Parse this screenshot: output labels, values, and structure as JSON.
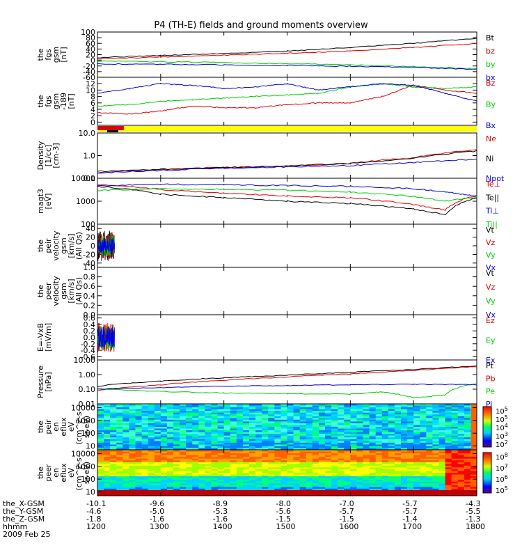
{
  "title": "P4 (TH-E) fields and ground moments overview",
  "colors": {
    "black": "#000000",
    "red": "#dd0000",
    "green": "#00cc00",
    "blue": "#0000dd",
    "yellow": "#ffff00"
  },
  "x_axis": {
    "ticks": [
      1200,
      1300,
      1400,
      1500,
      1600,
      1700,
      1800
    ],
    "rows": [
      {
        "label": "the_X-GSM",
        "values": [
          "-10.1",
          "-9.6",
          "-8.9",
          "-8.0",
          "-7.0",
          "-5.7",
          "-4.3"
        ]
      },
      {
        "label": "the_Y-GSM",
        "values": [
          "-4.6",
          "-5.0",
          "-5.3",
          "-5.6",
          "-5.7",
          "-5.7",
          "-5.5"
        ]
      },
      {
        "label": "the_Z-GSM",
        "values": [
          "-1.8",
          "-1.6",
          "-1.6",
          "-1.5",
          "-1.5",
          "-1.4",
          "-1.3"
        ]
      },
      {
        "label": "hhmm",
        "values": [
          "1200",
          "1300",
          "1400",
          "1500",
          "1600",
          "1700",
          "1800"
        ]
      }
    ],
    "date": "2009 Feb 25"
  },
  "chart_data": [
    {
      "type": "line",
      "ylabel": [
        "the",
        "fgs",
        "gsm",
        "[nT]"
      ],
      "ylim": [
        -60,
        100
      ],
      "ticks": [
        "100",
        "80",
        "60",
        "40",
        "20",
        "0",
        "-20",
        "-40",
        "-60"
      ],
      "series": [
        {
          "name": "Bt",
          "color": "black",
          "x": [
            1200,
            1300,
            1400,
            1500,
            1600,
            1700,
            1800
          ],
          "values": [
            10,
            17,
            24,
            33,
            45,
            60,
            78
          ]
        },
        {
          "name": "bz",
          "color": "red",
          "x": [
            1200,
            1300,
            1400,
            1500,
            1600,
            1700,
            1800
          ],
          "values": [
            5,
            12,
            18,
            25,
            33,
            45,
            60
          ]
        },
        {
          "name": "by",
          "color": "green",
          "x": [
            1200,
            1300,
            1400,
            1500,
            1600,
            1700,
            1800
          ],
          "values": [
            -3,
            -5,
            -8,
            -12,
            -16,
            -22,
            -30
          ]
        },
        {
          "name": "bx",
          "color": "blue",
          "x": [
            1200,
            1300,
            1400,
            1500,
            1600,
            1700,
            1800
          ],
          "values": [
            -13,
            -14,
            -16,
            -18,
            -21,
            -25,
            -32
          ]
        }
      ]
    },
    {
      "type": "line",
      "ylabel": [
        "the",
        "fgs",
        "gsm",
        "-189",
        "[nT]"
      ],
      "ylim": [
        -1,
        14
      ],
      "ticks": [
        "12",
        "10",
        "8",
        "6",
        "4",
        "2",
        "0"
      ],
      "series": [
        {
          "name": "Bz",
          "color": "red",
          "x": [
            1200,
            1250,
            1300,
            1350,
            1400,
            1450,
            1500,
            1550,
            1600,
            1650,
            1700,
            1750,
            1800
          ],
          "values": [
            3,
            2.5,
            3.5,
            5,
            4.5,
            4.5,
            5.5,
            6,
            6,
            8,
            11.5,
            10,
            9
          ]
        },
        {
          "name": "By",
          "color": "green",
          "x": [
            1200,
            1250,
            1300,
            1350,
            1400,
            1450,
            1500,
            1550,
            1600,
            1650,
            1700,
            1750,
            1800
          ],
          "values": [
            5,
            5.5,
            6.5,
            7,
            7.5,
            8,
            8.5,
            9,
            11,
            12,
            11,
            10.5,
            11
          ]
        },
        {
          "name": "Bx",
          "color": "blue",
          "x": [
            1200,
            1250,
            1300,
            1350,
            1400,
            1450,
            1500,
            1550,
            1600,
            1650,
            1700,
            1750,
            1800
          ],
          "values": [
            9,
            10.5,
            12,
            11.5,
            10.5,
            11,
            12,
            10,
            11,
            12,
            11.5,
            9,
            6.5
          ]
        }
      ]
    },
    {
      "type": "line",
      "ylabel": [
        "Density",
        "[1/cc]",
        "[cm-3]"
      ],
      "log": true,
      "ylim": [
        0.1,
        10
      ],
      "ticks": [
        "10.0",
        "1.0",
        "0.1"
      ],
      "series": [
        {
          "name": "Ne",
          "color": "red",
          "x": [
            1200,
            1300,
            1400,
            1500,
            1600,
            1700,
            1800
          ],
          "values": [
            0.18,
            0.24,
            0.3,
            0.35,
            0.45,
            0.8,
            1.8
          ]
        },
        {
          "name": "Ni",
          "color": "black",
          "x": [
            1200,
            1300,
            1400,
            1500,
            1600,
            1700,
            1800
          ],
          "values": [
            0.2,
            0.25,
            0.3,
            0.35,
            0.45,
            0.75,
            1.6
          ]
        },
        {
          "name": "Npot",
          "color": "blue",
          "x": [
            1200,
            1300,
            1400,
            1500,
            1600,
            1700,
            1800
          ],
          "values": [
            0.17,
            0.22,
            0.28,
            0.32,
            0.36,
            0.5,
            0.7
          ]
        }
      ]
    },
    {
      "type": "line",
      "ylabel": [
        "magt3",
        "[eV]"
      ],
      "log": true,
      "ylim": [
        100,
        10000
      ],
      "ticks": [
        "10000",
        "1000",
        "100"
      ],
      "series": [
        {
          "name": "Te⊥",
          "color": "red",
          "x": [
            1200,
            1300,
            1400,
            1500,
            1600,
            1700,
            1750,
            1800
          ],
          "values": [
            5500,
            3200,
            2200,
            1700,
            1400,
            700,
            400,
            1800
          ]
        },
        {
          "name": "Te||",
          "color": "black",
          "x": [
            1200,
            1300,
            1400,
            1500,
            1600,
            1700,
            1750,
            1800
          ],
          "values": [
            4500,
            2000,
            1400,
            1000,
            800,
            450,
            250,
            1400
          ]
        },
        {
          "name": "Ti⊥",
          "color": "blue",
          "x": [
            1200,
            1300,
            1400,
            1500,
            1600,
            1700,
            1750,
            1800
          ],
          "values": [
            4500,
            5500,
            5200,
            4800,
            4500,
            3500,
            2500,
            1600
          ]
        },
        {
          "name": "Ti||",
          "color": "green",
          "x": [
            1200,
            1300,
            1400,
            1500,
            1600,
            1700,
            1750,
            1800
          ],
          "values": [
            3000,
            3500,
            3300,
            3000,
            2500,
            1600,
            1000,
            1500
          ]
        }
      ]
    },
    {
      "type": "line",
      "ylabel": [
        "the",
        "peir",
        "velocity",
        "gsm",
        "[km/s]",
        "(All Qs)"
      ],
      "ylim": [
        -50,
        50
      ],
      "ticks": [
        "40",
        "20",
        "0",
        "-20",
        "-40"
      ],
      "series": [
        {
          "name": "Vt",
          "color": "black",
          "x": [
            1200,
            1213,
            1227
          ],
          "values": [
            0,
            0,
            0
          ]
        },
        {
          "name": "Vz",
          "color": "red",
          "x": [
            1200,
            1213,
            1227
          ],
          "values": [
            0,
            0,
            0
          ]
        },
        {
          "name": "Vy",
          "color": "green",
          "x": [
            1200,
            1213,
            1227
          ],
          "values": [
            0,
            0,
            0
          ]
        },
        {
          "name": "Vx",
          "color": "blue",
          "x": [
            1200,
            1213,
            1227
          ],
          "values": [
            0,
            0,
            0
          ]
        }
      ]
    },
    {
      "type": "line",
      "ylabel": [
        "the",
        "peer",
        "velocity",
        "gsm",
        "[km/s]",
        "(All Qs)"
      ],
      "ylim": [
        0,
        1
      ],
      "ticks": [
        "1.0",
        "0.8",
        "0.6",
        "0.4",
        "0.2",
        "0.0"
      ],
      "series": [
        {
          "name": "Vt"
        },
        {
          "name": "Vz"
        },
        {
          "name": "Vy"
        },
        {
          "name": "Vx"
        }
      ]
    },
    {
      "type": "line",
      "ylabel": [
        "E=-VxB",
        "[mV/m]"
      ],
      "ylim": [
        -0.7,
        0.7
      ],
      "ticks": [
        "0.6",
        "0.4",
        "0.2",
        "0.0",
        "-0.2",
        "-0.4",
        "-0.6"
      ],
      "series": [
        {
          "name": "Ez",
          "color": "red",
          "x": [
            1200,
            1213,
            1227
          ],
          "values": [
            0,
            0,
            0
          ]
        },
        {
          "name": "Ey",
          "color": "green",
          "x": [
            1200,
            1213,
            1227
          ],
          "values": [
            0,
            0,
            0
          ]
        },
        {
          "name": "Ex",
          "color": "blue",
          "x": [
            1200,
            1213,
            1227
          ],
          "values": [
            0,
            0,
            0
          ]
        }
      ]
    },
    {
      "type": "line",
      "ylabel": [
        "Pressure",
        "[nPa]"
      ],
      "log": true,
      "ylim": [
        0.01,
        10
      ],
      "ticks": [
        "10.00",
        "1.00",
        "0.10",
        "0.01"
      ],
      "series": [
        {
          "name": "Pt",
          "color": "black",
          "x": [
            1200,
            1300,
            1400,
            1500,
            1600,
            1700,
            1800
          ],
          "values": [
            0.16,
            0.35,
            0.6,
            0.9,
            1.4,
            2.2,
            3.8
          ]
        },
        {
          "name": "Pb",
          "color": "red",
          "x": [
            1200,
            1300,
            1400,
            1500,
            1600,
            1700,
            1800
          ],
          "values": [
            0.08,
            0.2,
            0.4,
            0.7,
            1.1,
            1.9,
            3.5
          ]
        },
        {
          "name": "Pe",
          "color": "green",
          "x": [
            1200,
            1300,
            1400,
            1500,
            1600,
            1650,
            1700,
            1750,
            1800
          ],
          "values": [
            0.1,
            0.07,
            0.055,
            0.05,
            0.045,
            0.065,
            0.025,
            0.04,
            0.25
          ]
        },
        {
          "name": "Pi",
          "color": "blue",
          "x": [
            1200,
            1300,
            1400,
            1500,
            1600,
            1700,
            1800
          ],
          "values": [
            0.1,
            0.13,
            0.16,
            0.18,
            0.2,
            0.22,
            0.2
          ]
        }
      ]
    },
    {
      "type": "heatmap",
      "ylabel": [
        "the",
        "peir",
        "en",
        "eflux",
        "eV",
        "(cm^2-s-",
        "sr-eV)"
      ],
      "log": true,
      "ylim": [
        5,
        20000
      ],
      "ticks": [
        "10000",
        "1000",
        "100",
        "10"
      ],
      "colorbar": {
        "labels": [
          "10^5",
          "10^5",
          "10^4",
          "10^3",
          "10^2"
        ]
      }
    },
    {
      "type": "heatmap",
      "ylabel": [
        "the",
        "peer",
        "en",
        "eflux",
        "eV",
        "(cm^2-s-",
        "sr-eV)"
      ],
      "log": true,
      "ylim": [
        5,
        20000
      ],
      "ticks": [
        "10000",
        "1000",
        "100",
        "10"
      ],
      "colorbar": {
        "labels": [
          "10^8",
          "10^7",
          "10^6",
          "10^5"
        ]
      }
    }
  ]
}
